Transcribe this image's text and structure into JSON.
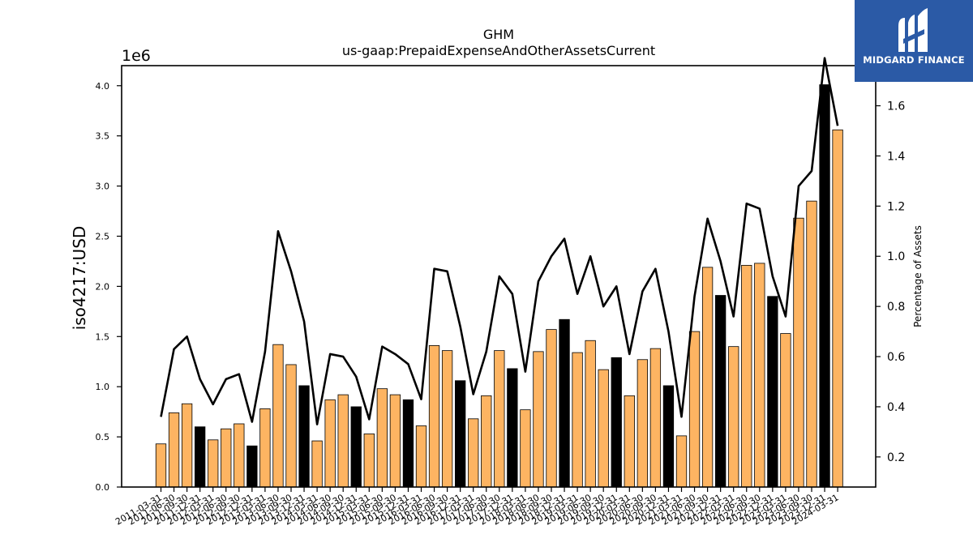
{
  "chart_data": {
    "type": "bar",
    "title": "GHM",
    "subtitle": "us-gaap:PrepaidExpenseAndOtherAssetsCurrent",
    "ylabel": "iso4217:USD",
    "y2label": "Percentage of Assets",
    "y_offset_label": "1e6",
    "ylim": [
      0,
      4.2
    ],
    "y2lim": [
      0.08,
      1.76
    ],
    "yticks": [
      "0.0",
      "0.5",
      "1.0",
      "1.5",
      "2.0",
      "2.5",
      "3.0",
      "3.5",
      "4.0"
    ],
    "y2ticks": [
      "0.2",
      "0.4",
      "0.6",
      "0.8",
      "1.0",
      "1.2",
      "1.4",
      "1.6"
    ],
    "bar_colors": {
      "quarter": "#fdb462",
      "fiscal_year_end": "#000000"
    },
    "line_color": "#000000",
    "categories": [
      "2011-03-31",
      "2011-06-30",
      "2011-09-30",
      "2011-12-31",
      "2012-03-31",
      "2012-06-30",
      "2012-09-30",
      "2012-12-31",
      "2013-03-31",
      "2013-06-30",
      "2013-09-30",
      "2013-12-31",
      "2014-03-31",
      "2014-06-30",
      "2014-09-30",
      "2014-12-31",
      "2015-03-31",
      "2015-06-30",
      "2015-09-30",
      "2015-12-31",
      "2016-03-31",
      "2016-06-30",
      "2016-09-30",
      "2016-12-31",
      "2017-03-31",
      "2017-06-30",
      "2017-09-30",
      "2017-12-31",
      "2018-03-31",
      "2018-06-30",
      "2018-09-30",
      "2018-12-31",
      "2019-03-31",
      "2019-06-30",
      "2019-09-30",
      "2019-12-31",
      "2020-03-31",
      "2020-06-30",
      "2020-09-30",
      "2020-12-31",
      "2021-03-31",
      "2021-06-30",
      "2021-09-30",
      "2021-12-31",
      "2022-03-31",
      "2022-06-30",
      "2022-09-30",
      "2022-12-31",
      "2023-03-31",
      "2023-06-30",
      "2023-09-30",
      "2023-12-31",
      "2024-03-31"
    ],
    "series": [
      {
        "values": [
          0.43,
          0.74,
          0.83,
          0.6,
          0.47,
          0.58,
          0.63,
          0.41,
          0.78,
          1.42,
          1.22,
          1.01,
          0.46,
          0.87,
          0.92,
          0.8,
          0.53,
          0.98,
          0.92,
          0.87,
          0.61,
          1.41,
          1.36,
          1.06,
          0.68,
          0.91,
          1.36,
          1.18,
          0.77,
          1.35,
          1.57,
          1.67,
          1.34,
          1.46,
          1.17,
          1.29,
          0.91,
          1.27,
          1.38,
          1.01,
          0.51,
          1.55,
          2.19,
          1.91,
          1.4,
          2.21,
          2.23,
          1.9,
          1.53,
          2.68,
          2.85,
          4.01,
          3.56
        ],
        "highlight": [
          false,
          false,
          false,
          true,
          false,
          false,
          false,
          true,
          false,
          false,
          false,
          true,
          false,
          false,
          false,
          true,
          false,
          false,
          false,
          true,
          false,
          false,
          false,
          true,
          false,
          false,
          false,
          true,
          false,
          false,
          false,
          true,
          false,
          false,
          false,
          true,
          false,
          false,
          false,
          true,
          false,
          false,
          false,
          true,
          false,
          false,
          false,
          true,
          false,
          false,
          false,
          true,
          false
        ]
      },
      {
        "axis": "right",
        "values": [
          0.36,
          0.63,
          0.68,
          0.51,
          0.41,
          0.51,
          0.53,
          0.34,
          0.62,
          1.1,
          0.94,
          0.74,
          0.33,
          0.61,
          0.6,
          0.52,
          0.35,
          0.64,
          0.61,
          0.57,
          0.43,
          0.95,
          0.94,
          0.72,
          0.45,
          0.62,
          0.92,
          0.85,
          0.54,
          0.9,
          1.0,
          1.07,
          0.85,
          1.0,
          0.8,
          0.88,
          0.61,
          0.86,
          0.95,
          0.7,
          0.36,
          0.84,
          1.15,
          0.98,
          0.76,
          1.21,
          1.19,
          0.92,
          0.76,
          1.28,
          1.34,
          1.79,
          1.52
        ]
      }
    ]
  },
  "brand": {
    "name": "MIDGARD FINANCE",
    "color": "#2b5aa6"
  }
}
